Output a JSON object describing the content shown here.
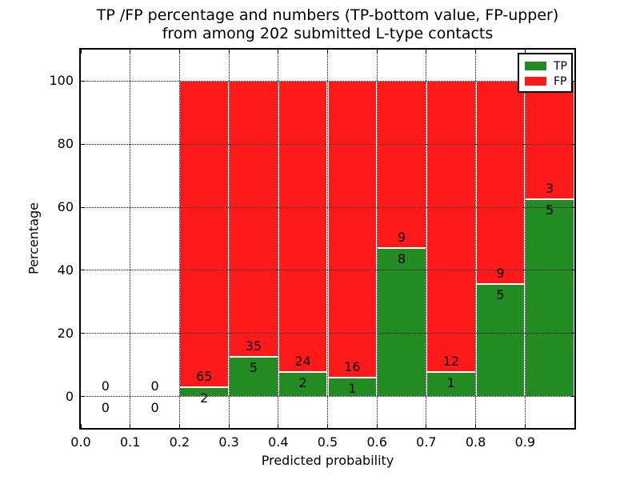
{
  "figure": {
    "title_line1": "TP /FP percentage and numbers (TP-bottom value, FP-upper)",
    "title_line2": "from among 202 submitted L-type contacts"
  },
  "axes": {
    "xlabel": "Predicted probability",
    "ylabel": "Percentage",
    "x_tick_labels": [
      "0.0",
      "0.1",
      "0.2",
      "0.3",
      "0.4",
      "0.5",
      "0.6",
      "0.7",
      "0.8",
      "0.9"
    ],
    "y_tick_labels": [
      "0",
      "20",
      "40",
      "60",
      "80",
      "100"
    ],
    "y_tick_values": [
      0,
      20,
      40,
      60,
      80,
      100
    ]
  },
  "legend": {
    "items": [
      {
        "label": "TP",
        "color": "#228b22"
      },
      {
        "label": "FP",
        "color": "#ff1a1a"
      }
    ]
  },
  "chart_data": {
    "type": "bar",
    "stacked": true,
    "title": "TP /FP percentage and numbers (TP-bottom value, FP-upper) from among 202 submitted L-type contacts",
    "xlabel": "Predicted probability",
    "ylabel": "Percentage",
    "xlim": [
      0.0,
      1.0
    ],
    "ylim": [
      -10,
      110
    ],
    "grid": true,
    "legend_position": "upper right",
    "total_submitted": 202,
    "bin_width": 0.1,
    "bin_starts": [
      0.0,
      0.1,
      0.2,
      0.3,
      0.4,
      0.5,
      0.6,
      0.7,
      0.8,
      0.9
    ],
    "series": [
      {
        "name": "TP",
        "color": "#228b22",
        "values": [
          0,
          0,
          2,
          5,
          2,
          1,
          8,
          1,
          5,
          5
        ]
      },
      {
        "name": "FP",
        "color": "#ff1a1a",
        "values": [
          0,
          0,
          65,
          35,
          24,
          16,
          9,
          12,
          9,
          3
        ]
      }
    ],
    "bar_value_unit": "percent of bin total (TP+FP), stacked to 100%"
  }
}
